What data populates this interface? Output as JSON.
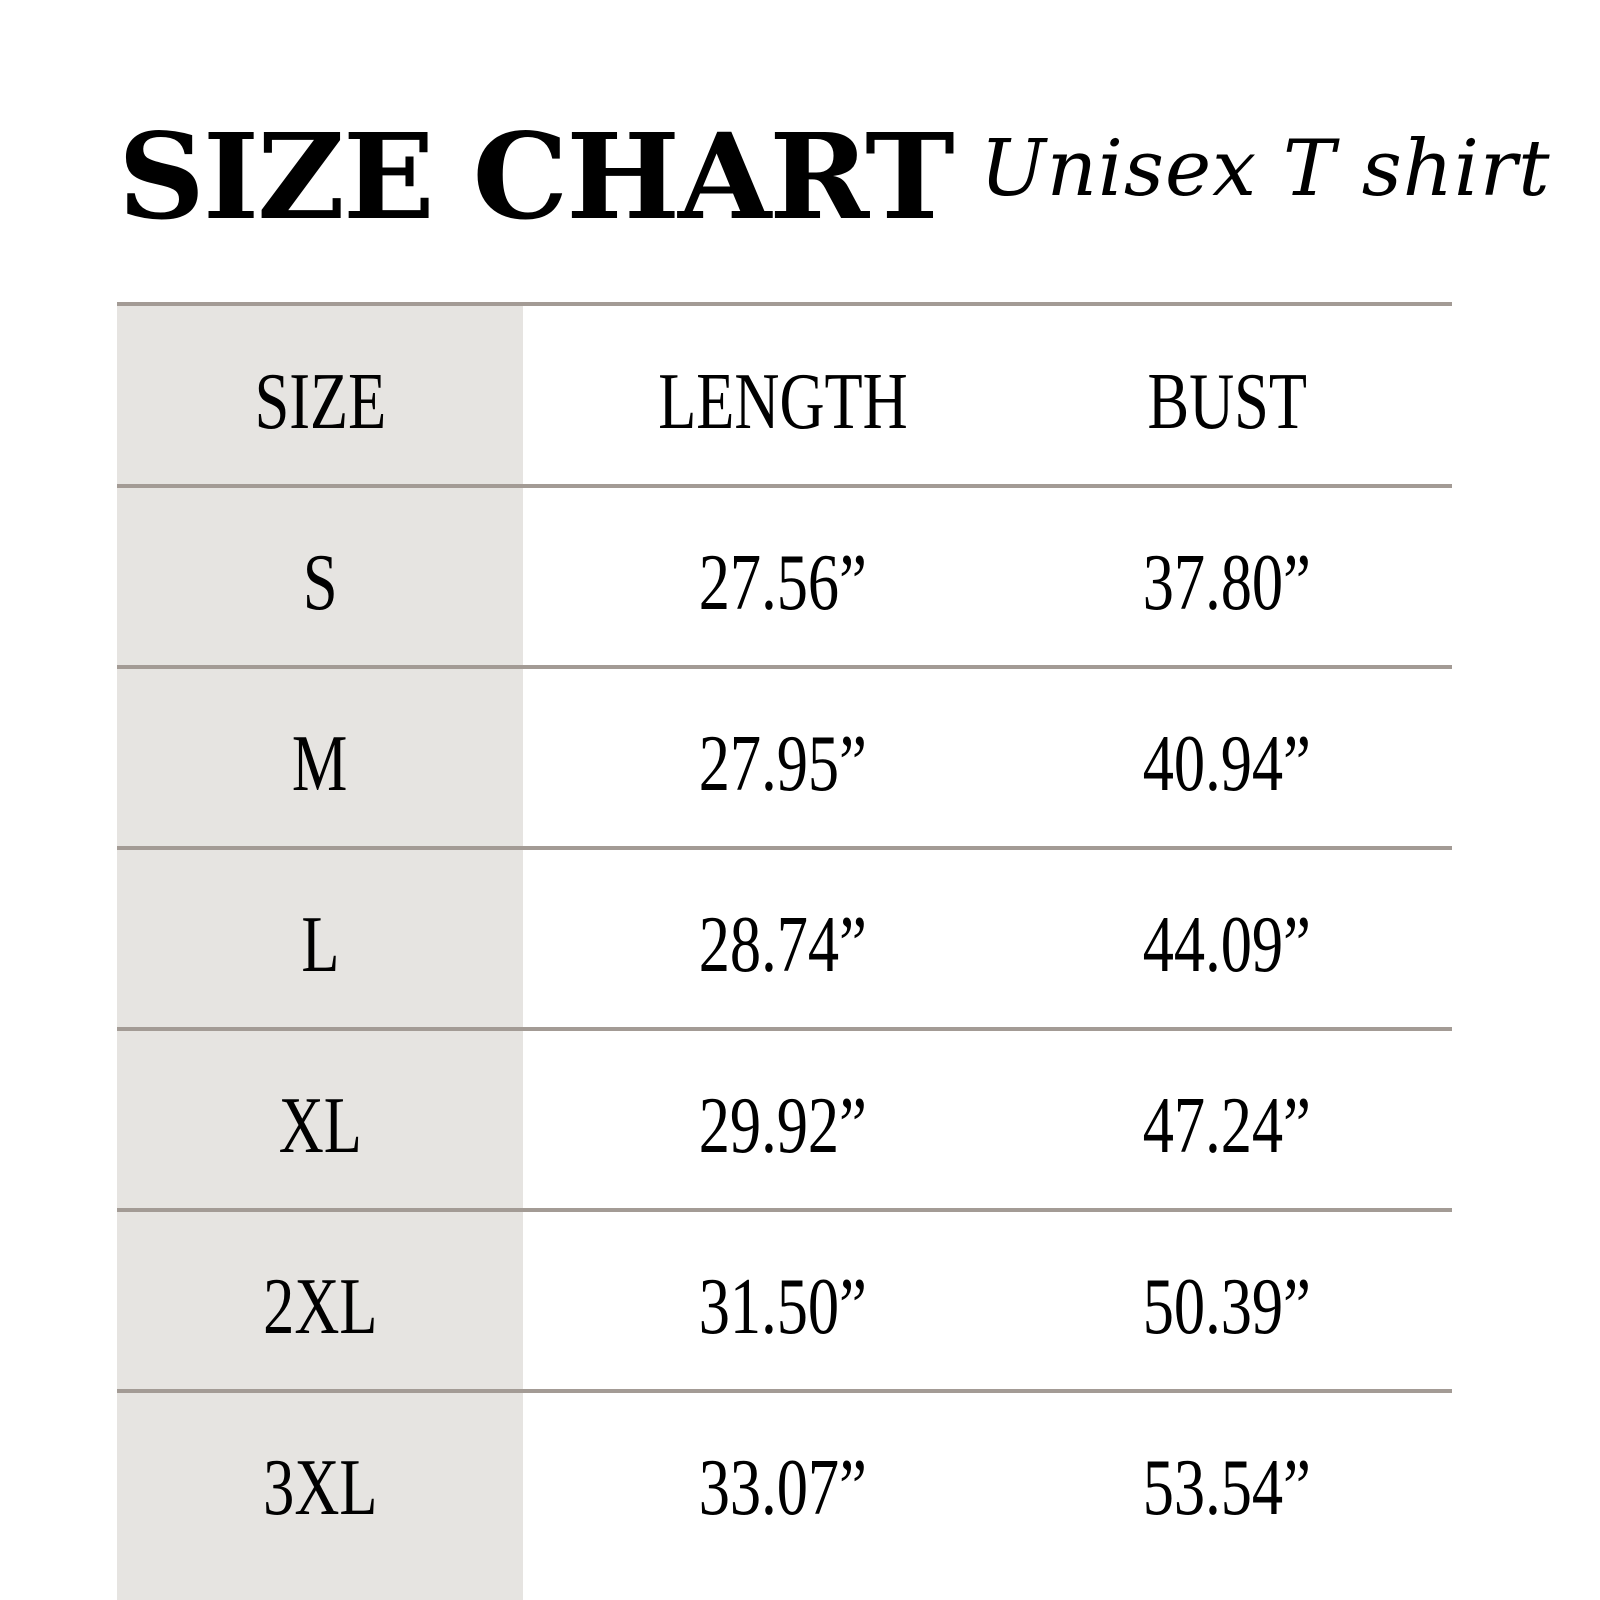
{
  "title": "SIZE CHART",
  "subtitle": "Unisex T shirt",
  "table": {
    "headers": [
      "SIZE",
      "LENGTH",
      "BUST"
    ],
    "rows": [
      [
        "S",
        "27.56”",
        "37.80”"
      ],
      [
        "M",
        "27.95”",
        "40.94”"
      ],
      [
        "L",
        "28.74”",
        "44.09”"
      ],
      [
        "XL",
        "29.92”",
        "47.24”"
      ],
      [
        "2XL",
        "31.50”",
        "50.39”"
      ],
      [
        "3XL",
        "33.07”",
        "53.54”"
      ]
    ]
  },
  "colors": {
    "size_column_bg": "#e6e4e1",
    "rule": "#a39b95"
  }
}
